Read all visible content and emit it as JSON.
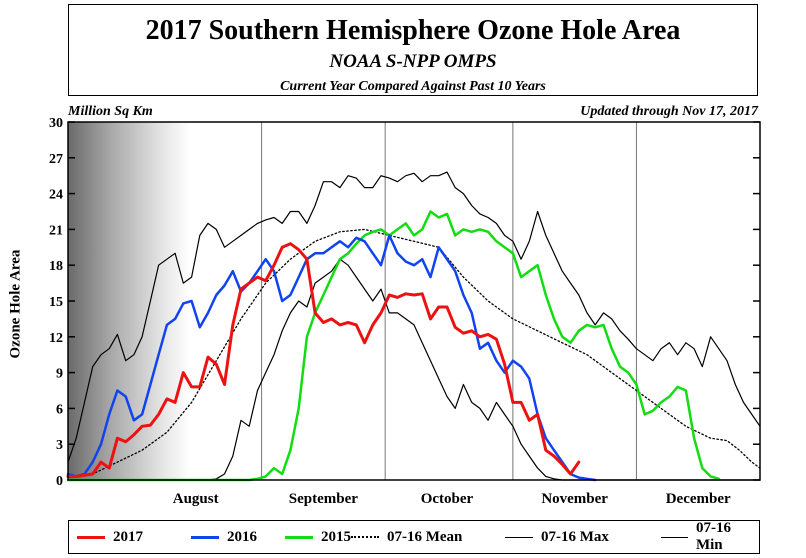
{
  "title": "2017 Southern Hemisphere Ozone Hole Area",
  "subtitle": "NOAA S-NPP OMPS",
  "description": "Current Year Compared Against Past 10 Years",
  "units_label": "Million Sq Km",
  "updated_label": "Updated through Nov 17, 2017",
  "chart_data": {
    "type": "line",
    "title": "2017 Southern Hemisphere Ozone Hole Area",
    "ylabel": "Ozone Hole Area",
    "ylim": [
      0,
      30
    ],
    "y_ticks": [
      0,
      3,
      6,
      9,
      12,
      15,
      18,
      21,
      24,
      27,
      30
    ],
    "x_axis_note": "Day of year, Jul 16 to Dec 31",
    "xlim": [
      197,
      365
    ],
    "month_labels": [
      {
        "label": "August",
        "day": 228
      },
      {
        "label": "September",
        "day": 259
      },
      {
        "label": "October",
        "day": 289
      },
      {
        "label": "November",
        "day": 320
      },
      {
        "label": "December",
        "day": 350
      }
    ],
    "month_boundaries": [
      244,
      274,
      305,
      335
    ],
    "grid": true,
    "legend_position": "bottom",
    "series": [
      {
        "name": "2017",
        "color": "#ee1111",
        "style": "solid",
        "width": 3,
        "x": [
          197,
          199,
          201,
          203,
          205,
          207,
          209,
          211,
          213,
          215,
          217,
          219,
          221,
          223,
          225,
          227,
          229,
          231,
          233,
          235,
          237,
          239,
          241,
          243,
          245,
          247,
          249,
          251,
          253,
          255,
          257,
          259,
          261,
          263,
          265,
          267,
          269,
          271,
          273,
          275,
          277,
          279,
          281,
          283,
          285,
          287,
          289,
          291,
          293,
          295,
          297,
          299,
          301,
          303,
          305,
          307,
          309,
          311,
          313,
          315,
          317,
          319,
          321
        ],
        "y": [
          0.3,
          0.3,
          0.4,
          0.5,
          1.5,
          1.0,
          3.5,
          3.2,
          3.8,
          4.5,
          4.6,
          5.5,
          6.8,
          6.5,
          9.0,
          7.8,
          7.8,
          10.3,
          9.7,
          8.0,
          13.0,
          16.0,
          16.5,
          17.0,
          16.7,
          18.0,
          19.5,
          19.8,
          19.3,
          18.5,
          14.0,
          13.2,
          13.5,
          13.0,
          13.2,
          13.0,
          11.5,
          13.0,
          14.0,
          15.5,
          15.3,
          15.6,
          15.5,
          15.6,
          13.5,
          14.5,
          14.5,
          12.8,
          12.3,
          12.5,
          12.0,
          12.2,
          11.8,
          9.7,
          6.5,
          6.5,
          5.0,
          5.5,
          2.5,
          2.0,
          1.3,
          0.5,
          1.5
        ]
      },
      {
        "name": "2016",
        "color": "#1144ee",
        "style": "solid",
        "width": 2.5,
        "x": [
          197,
          199,
          201,
          203,
          205,
          207,
          209,
          211,
          213,
          215,
          217,
          219,
          221,
          223,
          225,
          227,
          229,
          231,
          233,
          235,
          237,
          239,
          241,
          243,
          245,
          247,
          249,
          251,
          253,
          255,
          257,
          259,
          261,
          263,
          265,
          267,
          269,
          271,
          273,
          275,
          277,
          279,
          281,
          283,
          285,
          287,
          289,
          291,
          293,
          295,
          297,
          299,
          301,
          303,
          305,
          307,
          309,
          311,
          313,
          315,
          317,
          319,
          321,
          323,
          325
        ],
        "y": [
          0.5,
          0.3,
          0.5,
          1.5,
          3.0,
          5.5,
          7.5,
          7.0,
          5.0,
          5.5,
          8.0,
          10.5,
          13.0,
          13.5,
          14.8,
          15.0,
          12.8,
          14.0,
          15.5,
          16.3,
          17.5,
          15.8,
          16.5,
          17.5,
          18.5,
          17.5,
          15.0,
          15.5,
          17.0,
          18.5,
          19.0,
          19.0,
          19.5,
          20.0,
          19.5,
          20.3,
          20.0,
          19.0,
          18.0,
          20.5,
          19.0,
          18.3,
          18.0,
          18.5,
          17.0,
          19.5,
          18.5,
          17.5,
          15.5,
          14.0,
          11.0,
          11.5,
          10.0,
          9.0,
          10.0,
          9.5,
          8.5,
          5.5,
          3.5,
          2.5,
          1.5,
          0.5,
          0.2,
          0.1,
          0.0
        ]
      },
      {
        "name": "2015",
        "color": "#11dd11",
        "style": "solid",
        "width": 2.5,
        "x": [
          197,
          205,
          210,
          215,
          218,
          221,
          223,
          225,
          227,
          229,
          231,
          233,
          235,
          237,
          239,
          241,
          243,
          245,
          247,
          249,
          251,
          253,
          255,
          257,
          259,
          261,
          263,
          265,
          267,
          269,
          271,
          273,
          275,
          277,
          279,
          281,
          283,
          285,
          287,
          289,
          291,
          293,
          295,
          297,
          299,
          301,
          303,
          305,
          307,
          309,
          311,
          313,
          315,
          317,
          319,
          321,
          323,
          325,
          327,
          329,
          331,
          333,
          335,
          337,
          339,
          341,
          343,
          345,
          347,
          349,
          351,
          353,
          355
        ],
        "y": [
          0.0,
          0.0,
          0.0,
          0.0,
          0.0,
          0.0,
          0.0,
          0.0,
          0.0,
          0.0,
          0.0,
          0.0,
          0.0,
          0.0,
          0.0,
          0.0,
          0.1,
          0.3,
          1.0,
          0.5,
          2.5,
          6.0,
          12.0,
          14.0,
          15.5,
          17.0,
          18.5,
          19.0,
          19.8,
          20.5,
          20.8,
          21.0,
          20.5,
          21.0,
          21.5,
          20.5,
          21.0,
          22.5,
          22.0,
          22.3,
          20.5,
          21.0,
          20.8,
          21.0,
          20.8,
          20.0,
          19.5,
          19.0,
          17.0,
          17.5,
          18.0,
          15.5,
          13.5,
          12.0,
          11.5,
          12.5,
          13.0,
          12.8,
          13.0,
          11.0,
          9.5,
          9.0,
          8.0,
          5.5,
          5.8,
          6.5,
          7.0,
          7.8,
          7.5,
          3.5,
          1.0,
          0.3,
          0.1
        ]
      },
      {
        "name": "07-16 Mean",
        "color": "#000000",
        "style": "dotted",
        "width": 1.3,
        "x": [
          197,
          203,
          209,
          215,
          221,
          227,
          233,
          239,
          245,
          251,
          257,
          263,
          269,
          275,
          281,
          287,
          293,
          299,
          305,
          311,
          317,
          323,
          329,
          335,
          341,
          347,
          353,
          357,
          360,
          363,
          365
        ],
        "y": [
          0.2,
          0.5,
          1.5,
          2.5,
          4.0,
          6.5,
          10.0,
          13.5,
          16.5,
          18.5,
          20.0,
          20.8,
          21.0,
          20.5,
          20.0,
          19.5,
          17.0,
          15.0,
          13.5,
          12.5,
          11.5,
          10.5,
          9.0,
          7.5,
          6.0,
          4.5,
          3.5,
          3.3,
          2.5,
          1.5,
          1.0
        ]
      },
      {
        "name": "07-16 Max",
        "color": "#000000",
        "style": "solid",
        "width": 1.2,
        "x": [
          197,
          199,
          201,
          203,
          205,
          207,
          209,
          211,
          213,
          215,
          217,
          219,
          221,
          223,
          225,
          227,
          229,
          231,
          233,
          235,
          237,
          239,
          241,
          243,
          245,
          247,
          249,
          251,
          253,
          255,
          257,
          259,
          261,
          263,
          265,
          267,
          269,
          271,
          273,
          275,
          277,
          279,
          281,
          283,
          285,
          287,
          289,
          291,
          293,
          295,
          297,
          299,
          301,
          303,
          305,
          307,
          309,
          311,
          313,
          315,
          317,
          319,
          321,
          323,
          325,
          327,
          329,
          331,
          333,
          335,
          337,
          339,
          341,
          343,
          345,
          347,
          349,
          351,
          353,
          355,
          357,
          359,
          361,
          363,
          365
        ],
        "y": [
          1.5,
          3.5,
          6.5,
          9.5,
          10.5,
          11.0,
          12.2,
          10.0,
          10.5,
          12.0,
          15.0,
          18.0,
          18.5,
          19.0,
          16.5,
          17.0,
          20.5,
          21.5,
          21.0,
          19.5,
          20.0,
          20.5,
          21.0,
          21.5,
          21.8,
          22.0,
          21.5,
          22.5,
          22.5,
          21.5,
          23.0,
          25.0,
          25.0,
          24.5,
          25.5,
          25.3,
          24.5,
          24.5,
          25.5,
          25.3,
          25.0,
          25.5,
          25.7,
          25.0,
          25.5,
          25.5,
          25.8,
          24.5,
          24.0,
          23.0,
          22.3,
          22.0,
          21.5,
          20.5,
          20.0,
          18.5,
          20.0,
          22.5,
          20.5,
          19.0,
          17.5,
          16.5,
          15.5,
          14.0,
          13.0,
          14.0,
          13.5,
          12.5,
          11.8,
          11.0,
          10.5,
          10.0,
          11.0,
          11.5,
          10.5,
          11.5,
          11.0,
          9.5,
          12.0,
          11.0,
          10.0,
          8.0,
          6.5,
          5.5,
          4.5
        ]
      },
      {
        "name": "07-16 Min",
        "color": "#000000",
        "style": "solid",
        "width": 1.2,
        "x": [
          197,
          205,
          210,
          215,
          220,
          224,
          228,
          231,
          233,
          235,
          237,
          239,
          241,
          243,
          245,
          247,
          249,
          251,
          253,
          255,
          257,
          259,
          261,
          263,
          265,
          267,
          269,
          271,
          273,
          275,
          277,
          279,
          281,
          283,
          285,
          287,
          289,
          291,
          293,
          295,
          297,
          299,
          301,
          303,
          305,
          307,
          309,
          311,
          313,
          315,
          317,
          319,
          321,
          323,
          325,
          327,
          329,
          331,
          333,
          335,
          337,
          339,
          341,
          343,
          345,
          347,
          349,
          351,
          353,
          355,
          357,
          359,
          361,
          363,
          365
        ],
        "y": [
          0.0,
          0.0,
          0.0,
          0.0,
          0.0,
          0.0,
          0.0,
          0.0,
          0.1,
          0.5,
          2.0,
          5.0,
          4.5,
          7.5,
          9.0,
          10.5,
          12.5,
          14.0,
          15.0,
          14.5,
          16.5,
          17.0,
          17.5,
          18.5,
          18.0,
          17.0,
          16.0,
          15.0,
          16.0,
          14.0,
          14.0,
          13.5,
          13.0,
          11.5,
          10.0,
          8.5,
          7.0,
          6.0,
          8.0,
          6.5,
          6.0,
          5.0,
          6.5,
          5.5,
          4.5,
          3.0,
          2.0,
          1.0,
          0.3,
          0.1,
          0.0,
          0.0,
          0.0,
          0.0,
          0.0,
          0.0,
          0.0,
          0.0,
          0.0,
          0.0,
          0.0,
          0.0,
          0.0,
          0.0,
          0.0,
          0.0,
          0.0,
          0.0,
          0.0,
          0.0,
          0.0,
          0.0,
          0.0,
          0.0,
          0.0
        ]
      }
    ]
  },
  "legend": [
    {
      "label": "2017",
      "color": "#ee1111",
      "style": "solid"
    },
    {
      "label": "2016",
      "color": "#1144ee",
      "style": "solid"
    },
    {
      "label": "2015",
      "color": "#11dd11",
      "style": "solid"
    },
    {
      "label": "07-16 Mean",
      "color": "#000000",
      "style": "dotted"
    },
    {
      "label": "07-16 Max",
      "color": "#000000",
      "style": "solid"
    },
    {
      "label": "07-16 Min",
      "color": "#000000",
      "style": "solid"
    }
  ]
}
